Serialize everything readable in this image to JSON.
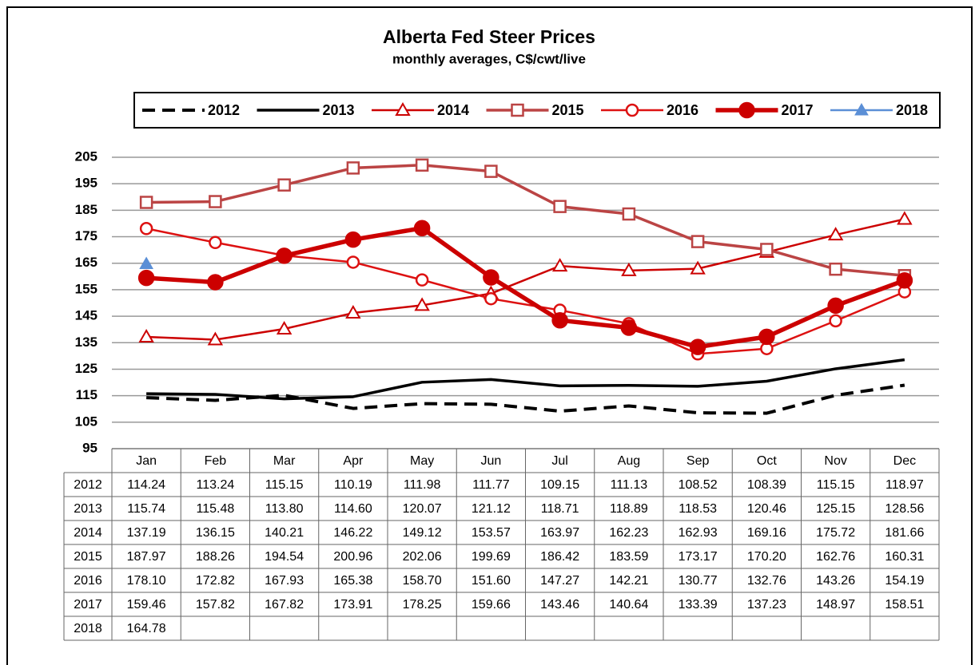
{
  "chart_data": {
    "type": "line",
    "title": "Alberta Fed Steer Prices",
    "subtitle": "monthly averages, C$/cwt/live",
    "categories": [
      "Jan",
      "Feb",
      "Mar",
      "Apr",
      "May",
      "Jun",
      "Jul",
      "Aug",
      "Sep",
      "Oct",
      "Nov",
      "Dec"
    ],
    "ylim": [
      95,
      205
    ],
    "yticks": [
      95,
      105,
      115,
      125,
      135,
      145,
      155,
      165,
      175,
      185,
      195,
      205
    ],
    "grid": true,
    "legend": "top",
    "series": [
      {
        "name": "2012",
        "color": "#000000",
        "dashed": true,
        "marker": null,
        "values": [
          114.24,
          113.24,
          115.15,
          110.19,
          111.98,
          111.77,
          109.15,
          111.13,
          108.52,
          108.39,
          115.15,
          118.97
        ],
        "value_labels": [
          "114.24",
          "113.24",
          "115.15",
          "110.19",
          "111.98",
          "111.77",
          "109.15",
          "111.13",
          "108.52",
          "108.39",
          "115.15",
          "118.97"
        ]
      },
      {
        "name": "2013",
        "color": "#000000",
        "dashed": false,
        "marker": null,
        "values": [
          115.74,
          115.48,
          113.8,
          114.6,
          120.07,
          121.12,
          118.71,
          118.89,
          118.53,
          120.46,
          125.15,
          128.56
        ],
        "value_labels": [
          "115.74",
          "115.48",
          "113.80",
          "114.60",
          "120.07",
          "121.12",
          "118.71",
          "118.89",
          "118.53",
          "120.46",
          "125.15",
          "128.56"
        ]
      },
      {
        "name": "2014",
        "color": "#cc0000",
        "dashed": false,
        "marker": "triangle-open",
        "values": [
          137.19,
          136.15,
          140.21,
          146.22,
          149.12,
          153.57,
          163.97,
          162.23,
          162.93,
          169.16,
          175.72,
          181.66
        ],
        "value_labels": [
          "137.19",
          "136.15",
          "140.21",
          "146.22",
          "149.12",
          "153.57",
          "163.97",
          "162.23",
          "162.93",
          "169.16",
          "175.72",
          "181.66"
        ]
      },
      {
        "name": "2015",
        "color": "#bb4444",
        "dashed": false,
        "marker": "square-open",
        "values": [
          187.97,
          188.26,
          194.54,
          200.96,
          202.06,
          199.69,
          186.42,
          183.59,
          173.17,
          170.2,
          162.76,
          160.31
        ],
        "value_labels": [
          "187.97",
          "188.26",
          "194.54",
          "200.96",
          "202.06",
          "199.69",
          "186.42",
          "183.59",
          "173.17",
          "170.20",
          "162.76",
          "160.31"
        ]
      },
      {
        "name": "2016",
        "color": "#dd1111",
        "dashed": false,
        "marker": "circle-open",
        "values": [
          178.1,
          172.82,
          167.93,
          165.38,
          158.7,
          151.6,
          147.27,
          142.21,
          130.77,
          132.76,
          143.26,
          154.19
        ],
        "value_labels": [
          "178.10",
          "172.82",
          "167.93",
          "165.38",
          "158.70",
          "151.60",
          "147.27",
          "142.21",
          "130.77",
          "132.76",
          "143.26",
          "154.19"
        ]
      },
      {
        "name": "2017",
        "color": "#cc0000",
        "dashed": false,
        "marker": "circle",
        "values": [
          159.46,
          157.82,
          167.82,
          173.91,
          178.25,
          159.66,
          143.46,
          140.64,
          133.39,
          137.23,
          148.97,
          158.51
        ],
        "value_labels": [
          "159.46",
          "157.82",
          "167.82",
          "173.91",
          "178.25",
          "159.66",
          "143.46",
          "140.64",
          "133.39",
          "137.23",
          "148.97",
          "158.51"
        ]
      },
      {
        "name": "2018",
        "color": "#5b8fd6",
        "dashed": false,
        "marker": "triangle",
        "values": [
          164.78,
          null,
          null,
          null,
          null,
          null,
          null,
          null,
          null,
          null,
          null,
          null
        ],
        "value_labels": [
          "164.78",
          null,
          null,
          null,
          null,
          null,
          null,
          null,
          null,
          null,
          null,
          null
        ]
      }
    ]
  }
}
